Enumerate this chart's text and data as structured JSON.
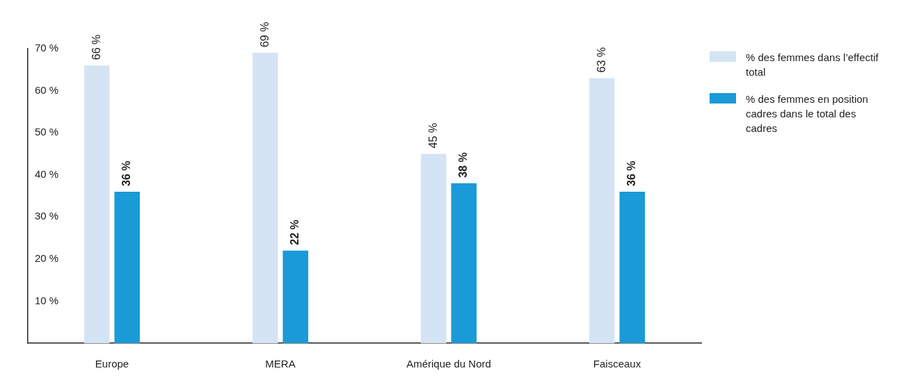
{
  "chart_data": {
    "type": "bar",
    "categories": [
      "Europe",
      "MERA",
      "Amérique du Nord",
      "Faisceaux"
    ],
    "series": [
      {
        "name": "% des femmes dans l’effectif total",
        "color": "#d4e4f5",
        "values": [
          66,
          69,
          45,
          63
        ],
        "value_labels": [
          "66 %",
          "69 %",
          "45 %",
          "63 %"
        ]
      },
      {
        "name": "% des femmes en position cadres dans le total des cadres",
        "color": "#1a9ad6",
        "values": [
          36,
          22,
          38,
          36
        ],
        "value_labels": [
          "36 %",
          "22 %",
          "38 %",
          "36 %"
        ]
      }
    ],
    "ylim": [
      0,
      70
    ],
    "yticks": [
      {
        "value": 10,
        "label": "10 %"
      },
      {
        "value": 20,
        "label": "20 %"
      },
      {
        "value": 30,
        "label": "30 %"
      },
      {
        "value": 40,
        "label": "40 %"
      },
      {
        "value": 50,
        "label": "50 %"
      },
      {
        "value": 60,
        "label": "60 %"
      },
      {
        "value": 70,
        "label": "70 %"
      }
    ],
    "grid": false,
    "legend": "top right"
  }
}
